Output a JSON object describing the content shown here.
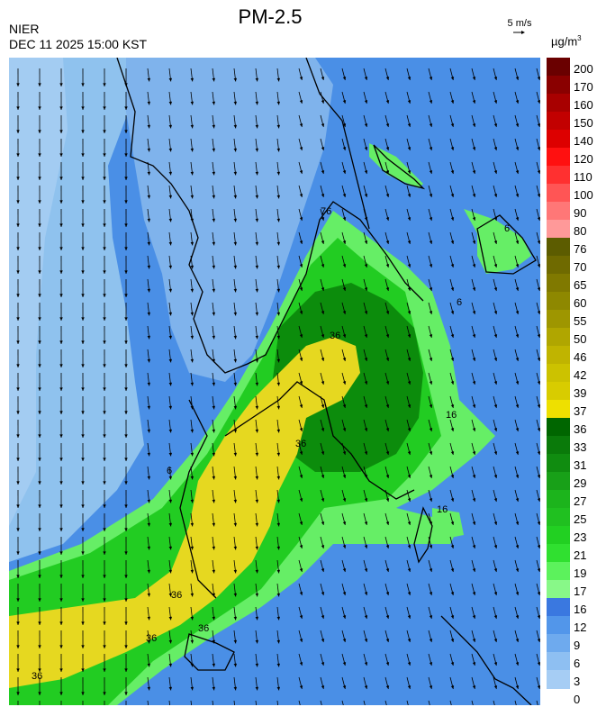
{
  "header": {
    "title": "PM-2.5",
    "agency": "NIER",
    "timestamp": "DEC 11 2025 15:00 KST",
    "wind_reference": "5 m/s",
    "unit_base": "µg/m",
    "unit_exp": "3"
  },
  "colors": {
    "water_blue": "#4a8fe6",
    "light_blue": "#7fb3ec",
    "sky_blue": "#9ecbee",
    "green": "#22cc22",
    "dark_green": "#0c8c0c",
    "light_green": "#66ee66",
    "yellow": "#e6d820",
    "olive_yellow": "#d8cc2a"
  },
  "legend": {
    "labels": [
      "200",
      "170",
      "160",
      "150",
      "140",
      "120",
      "110",
      "100",
      "90",
      "80",
      "76",
      "70",
      "65",
      "60",
      "55",
      "50",
      "46",
      "42",
      "39",
      "37",
      "36",
      "33",
      "31",
      "29",
      "27",
      "25",
      "23",
      "21",
      "19",
      "17",
      "16",
      "12",
      "9",
      "6",
      "3",
      "0"
    ],
    "colors": [
      "#6a0000",
      "#8a0000",
      "#a80000",
      "#c20000",
      "#dd0000",
      "#ff1010",
      "#ff3030",
      "#ff5555",
      "#ff7777",
      "#ff9999",
      "#5c5c00",
      "#6f6a00",
      "#807900",
      "#8e8800",
      "#9e9600",
      "#b0a600",
      "#c0b400",
      "#ccc200",
      "#d8cc00",
      "#eee000",
      "#006600",
      "#0a7a0a",
      "#108c10",
      "#18a018",
      "#1cb41c",
      "#20c020",
      "#22d022",
      "#30e030",
      "#5cf25c",
      "#88f888",
      "#3a78e0",
      "#5296ea",
      "#6eaaee",
      "#8ebff2",
      "#a6cdf4"
    ]
  },
  "map_labels": [
    "76",
    "36",
    "36",
    "16",
    "16",
    "36",
    "36",
    "36",
    "36",
    "6",
    "6",
    "6"
  ]
}
